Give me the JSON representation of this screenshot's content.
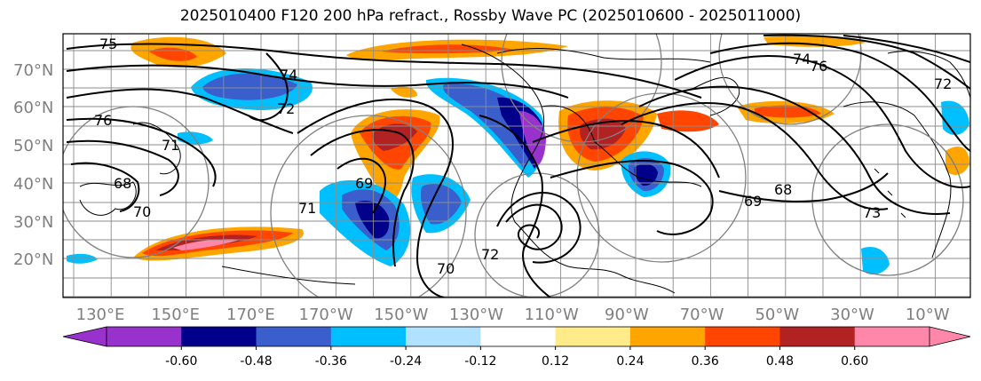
{
  "title": "2025010400 F120 200 hPa refract., Rossby Wave PC (2025010600 - 2025011000)",
  "map": {
    "lon_range": [
      120,
      -5
    ],
    "lat_range": [
      10,
      80
    ],
    "lat_ticks": [
      "70°N",
      "60°N",
      "50°N",
      "40°N",
      "30°N",
      "20°N"
    ],
    "lon_ticks": [
      "130°E",
      "150°E",
      "170°E",
      "170°W",
      "150°W",
      "130°W",
      "110°W",
      "90°W",
      "70°W",
      "50°W",
      "30°W",
      "10°W"
    ],
    "contour_labels": [
      "75",
      "76",
      "71",
      "68",
      "70",
      "74",
      "72",
      "69",
      "71",
      "74",
      "70",
      "72",
      "76",
      "69",
      "68",
      "73",
      "72"
    ]
  },
  "colorbar": {
    "colors": [
      "#9932cc",
      "#00008b",
      "#3a5fcd",
      "#00bfff",
      "#b0e2ff",
      "#ffffff",
      "#ffeb8a",
      "#ffa500",
      "#ff4500",
      "#b22222",
      "#ff88aa"
    ],
    "tick_labels": [
      "-0.60",
      "-0.48",
      "-0.36",
      "-0.24",
      "-0.12",
      "0.12",
      "0.24",
      "0.36",
      "0.48",
      "0.60"
    ]
  }
}
